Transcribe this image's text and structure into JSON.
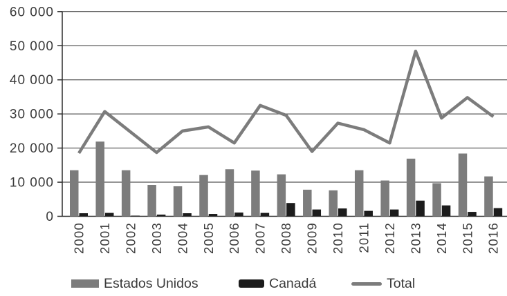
{
  "chart_data": {
    "type": "bar",
    "subtype": "bar+line combo",
    "title": "",
    "categories": [
      "2000",
      "2001",
      "2002",
      "2003",
      "2004",
      "2005",
      "2006",
      "2007",
      "2008",
      "2009",
      "2010",
      "2011",
      "2012",
      "2013",
      "2014",
      "2015",
      "2016"
    ],
    "series": [
      {
        "name": "Estados Unidos",
        "type": "bar",
        "color": "#7c7c7c",
        "values": [
          13500,
          21900,
          13500,
          9200,
          8800,
          12100,
          13800,
          13400,
          12300,
          7800,
          7600,
          13500,
          10500,
          16900,
          9700,
          18400,
          11700
        ]
      },
      {
        "name": "Canadá",
        "type": "bar",
        "color": "#1c1c1c",
        "values": [
          900,
          1000,
          200,
          500,
          900,
          700,
          1100,
          1000,
          3900,
          2000,
          2300,
          1600,
          2000,
          4600,
          3200,
          1300,
          2400
        ]
      },
      {
        "name": "Total",
        "type": "line",
        "color": "#7c7c7c",
        "values": [
          18500,
          30700,
          24700,
          18700,
          25000,
          26200,
          21500,
          32500,
          29600,
          19000,
          27300,
          25400,
          21500,
          48400,
          28800,
          34800,
          29200
        ]
      }
    ],
    "y_axis": {
      "min": 0,
      "max": 60000,
      "tick_interval": 10000,
      "tick_labels": [
        "0",
        "10 000",
        "20 000",
        "30 000",
        "40 000",
        "50 000",
        "60 000"
      ]
    },
    "x_axis": {
      "label_rotation": -90
    },
    "grid": true,
    "legend_position": "bottom"
  }
}
